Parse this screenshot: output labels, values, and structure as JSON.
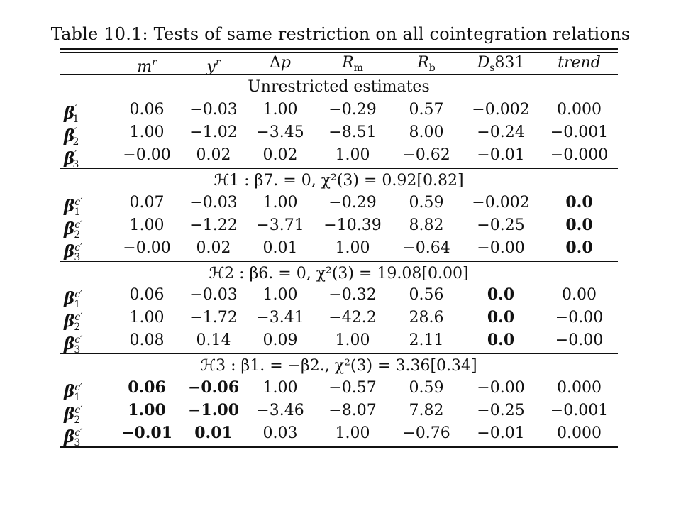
{
  "caption": "Table 10.1: Tests of same restriction on all cointegration relations",
  "header": [
    "",
    "m^r",
    "y^r",
    "Δp",
    "R_m",
    "R_b",
    "D_s831",
    "trend"
  ],
  "sections": [
    {
      "title": "Unrestricted estimates",
      "rows": [
        {
          "label": "β′1",
          "cells": [
            "0.06",
            "−0.03",
            "1.00",
            "−0.29",
            "0.57",
            "−0.002",
            "0.000"
          ]
        },
        {
          "label": "β′2",
          "cells": [
            "1.00",
            "−1.02",
            "−3.45",
            "−8.51",
            "8.00",
            "−0.24",
            "−0.001"
          ]
        },
        {
          "label": "β′3",
          "cells": [
            "−0.00",
            "0.02",
            "0.02",
            "1.00",
            "−0.62",
            "−0.01",
            "−0.000"
          ]
        }
      ]
    },
    {
      "title": "ℋ1 : β7. = 0,  χ²(3) = 0.92[0.82]",
      "rows": [
        {
          "label": "βc′1",
          "cells": [
            "0.07",
            "−0.03",
            "1.00",
            "−0.29",
            "0.59",
            "−0.002",
            "0.0"
          ]
        },
        {
          "label": "βc′2",
          "cells": [
            "1.00",
            "−1.22",
            "−3.71",
            "−10.39",
            "8.82",
            "−0.25",
            "0.0"
          ]
        },
        {
          "label": "βc′3",
          "cells": [
            "−0.00",
            "0.02",
            "0.01",
            "1.00",
            "−0.64",
            "−0.00",
            "0.0"
          ]
        }
      ]
    },
    {
      "title": "ℋ2 : β6. = 0,  χ²(3) = 19.08[0.00]",
      "rows": [
        {
          "label": "βc′1",
          "cells": [
            "0.06",
            "−0.03",
            "1.00",
            "−0.32",
            "0.56",
            "0.0",
            "0.00"
          ]
        },
        {
          "label": "βc′2",
          "cells": [
            "1.00",
            "−1.72",
            "−3.41",
            "−42.2",
            "28.6",
            "0.0",
            "−0.00"
          ]
        },
        {
          "label": "βc′3",
          "cells": [
            "0.08",
            "0.14",
            "0.09",
            "1.00",
            "2.11",
            "0.0",
            "−0.00"
          ]
        }
      ]
    },
    {
      "title": "ℋ3 : β1. = −β2.,  χ²(3) = 3.36[0.34]",
      "rows": [
        {
          "label": "βc′1",
          "cells": [
            "0.06",
            "−0.06",
            "1.00",
            "−0.57",
            "0.59",
            "−0.00",
            "0.000"
          ]
        },
        {
          "label": "βc′2",
          "cells": [
            "1.00",
            "−1.00",
            "−3.46",
            "−8.07",
            "7.82",
            "−0.25",
            "−0.001"
          ]
        },
        {
          "label": "βc′3",
          "cells": [
            "−0.01",
            "0.01",
            "0.03",
            "1.00",
            "−0.76",
            "−0.01",
            "0.000"
          ]
        }
      ]
    }
  ]
}
